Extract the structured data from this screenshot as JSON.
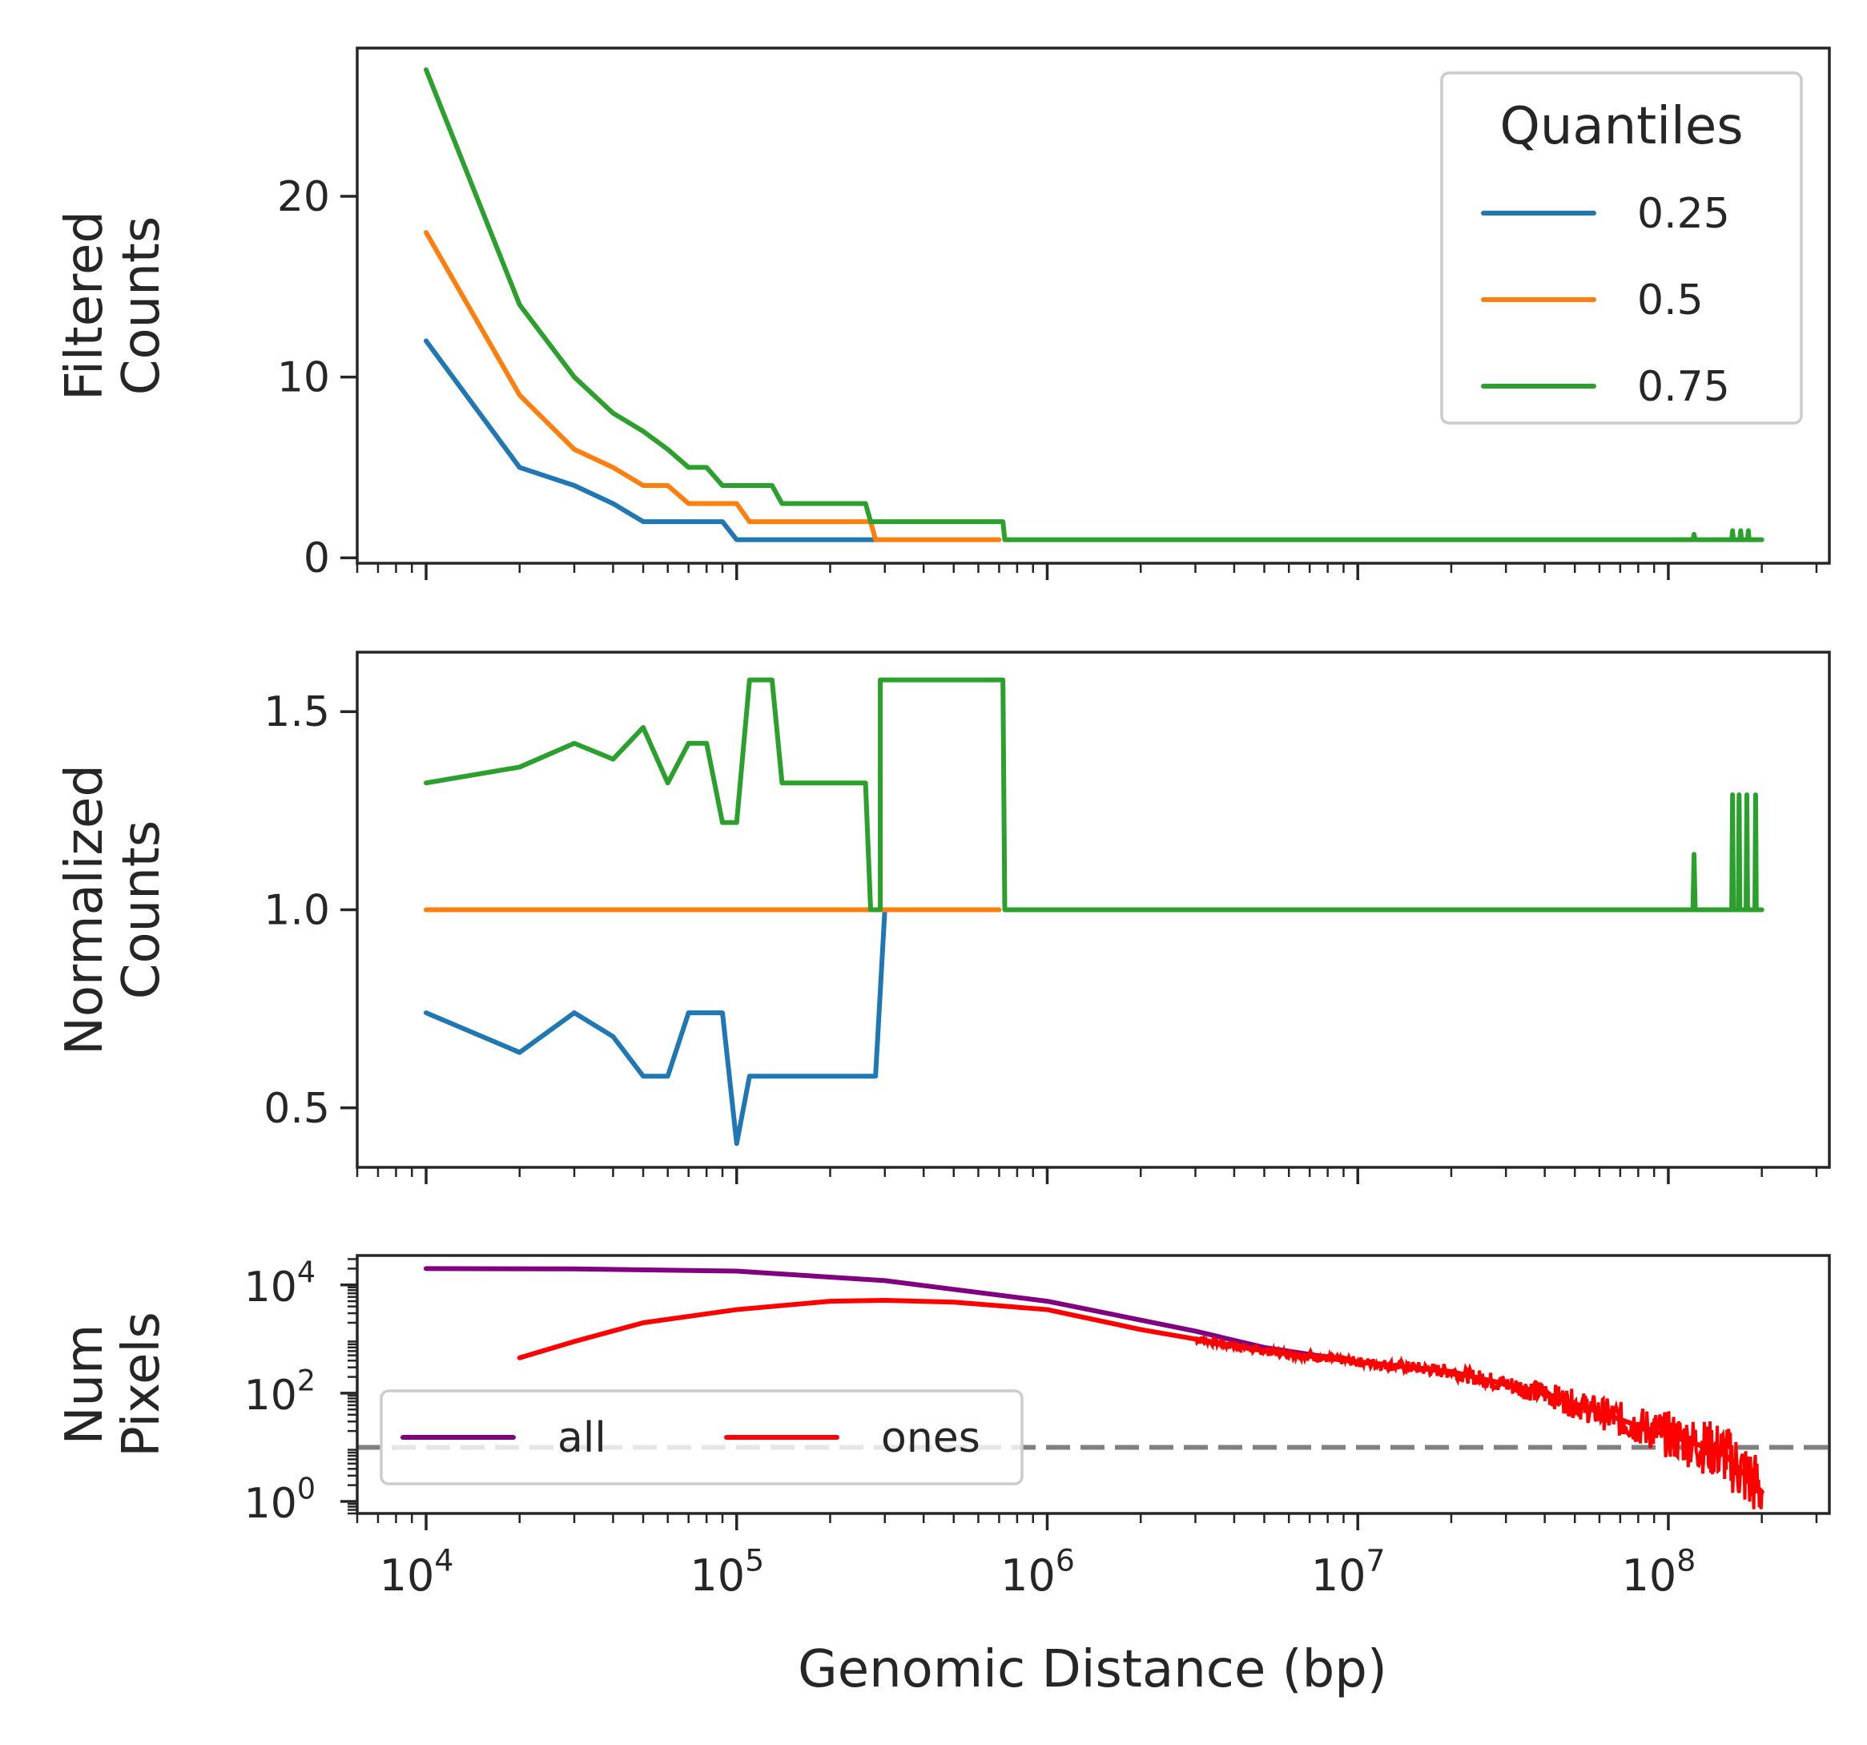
{
  "figure": {
    "xlabel": "Genomic Distance (bp)",
    "x_scale": "log",
    "xlim": [
      6000,
      330000000
    ],
    "x_ticks": [
      {
        "value": 10000,
        "base": "10",
        "exp": "4"
      },
      {
        "value": 100000,
        "base": "10",
        "exp": "5"
      },
      {
        "value": 1000000,
        "base": "10",
        "exp": "6"
      },
      {
        "value": 10000000,
        "base": "10",
        "exp": "7"
      },
      {
        "value": 100000000,
        "base": "10",
        "exp": "8"
      }
    ]
  },
  "chart_data": [
    {
      "type": "line",
      "ylabel_lines": [
        "Filtered",
        "Counts"
      ],
      "ylim": [
        -0.3,
        28.2
      ],
      "y_ticks": [
        {
          "value": 0,
          "label": "0"
        },
        {
          "value": 10,
          "label": "10"
        },
        {
          "value": 20,
          "label": "20"
        }
      ],
      "grid": false,
      "legend": {
        "title": "Quantiles",
        "placement": "upper-right"
      },
      "series": [
        {
          "name": "0.25",
          "color": "#1f77b4",
          "step": false,
          "points": [
            [
              10000,
              12
            ],
            [
              20000,
              5
            ],
            [
              30000,
              4
            ],
            [
              40000,
              3
            ],
            [
              50000,
              2
            ],
            [
              60000,
              2
            ],
            [
              70000,
              2
            ],
            [
              80000,
              2
            ],
            [
              90000,
              2
            ],
            [
              100000,
              1
            ],
            [
              200000,
              1
            ],
            [
              280000,
              1
            ]
          ]
        },
        {
          "name": "0.5",
          "color": "#ff7f0e",
          "step": false,
          "points": [
            [
              10000,
              18
            ],
            [
              20000,
              9
            ],
            [
              30000,
              6
            ],
            [
              40000,
              5
            ],
            [
              50000,
              4
            ],
            [
              60000,
              4
            ],
            [
              70000,
              3
            ],
            [
              80000,
              3
            ],
            [
              90000,
              3
            ],
            [
              100000,
              3
            ],
            [
              110000,
              2
            ],
            [
              200000,
              2
            ],
            [
              270000,
              2
            ],
            [
              280000,
              1
            ],
            [
              700000,
              1
            ]
          ]
        },
        {
          "name": "0.75",
          "color": "#2ca02c",
          "step": false,
          "points": [
            [
              10000,
              27
            ],
            [
              20000,
              14
            ],
            [
              30000,
              10
            ],
            [
              40000,
              8
            ],
            [
              50000,
              7
            ],
            [
              60000,
              6
            ],
            [
              70000,
              5
            ],
            [
              80000,
              5
            ],
            [
              90000,
              4
            ],
            [
              100000,
              4
            ],
            [
              130000,
              4
            ],
            [
              140000,
              3
            ],
            [
              260000,
              3
            ],
            [
              270000,
              2
            ],
            [
              720000,
              2
            ],
            [
              730000,
              1
            ],
            [
              120000000,
              1
            ],
            [
              121000000,
              1.3
            ],
            [
              122000000,
              1
            ],
            [
              160000000,
              1
            ],
            [
              161000000,
              1.5
            ],
            [
              162000000,
              1
            ],
            [
              170000000,
              1
            ],
            [
              171000000,
              1.5
            ],
            [
              172000000,
              1
            ],
            [
              180000000,
              1
            ],
            [
              181000000,
              1.5
            ],
            [
              182000000,
              1
            ],
            [
              200000000,
              1
            ]
          ]
        }
      ]
    },
    {
      "type": "line",
      "ylabel_lines": [
        "Normalized",
        "Counts"
      ],
      "ylim": [
        0.35,
        1.65
      ],
      "y_ticks": [
        {
          "value": 0.5,
          "label": "0.5"
        },
        {
          "value": 1.0,
          "label": "1.0"
        },
        {
          "value": 1.5,
          "label": "1.5"
        }
      ],
      "grid": false,
      "series": [
        {
          "name": "0.25",
          "color": "#1f77b4",
          "points": [
            [
              10000,
              0.74
            ],
            [
              20000,
              0.64
            ],
            [
              30000,
              0.74
            ],
            [
              40000,
              0.68
            ],
            [
              50000,
              0.58
            ],
            [
              60000,
              0.58
            ],
            [
              70000,
              0.74
            ],
            [
              80000,
              0.74
            ],
            [
              90000,
              0.74
            ],
            [
              100000,
              0.41
            ],
            [
              110000,
              0.58
            ],
            [
              280000,
              0.58
            ],
            [
              300000,
              1.0
            ]
          ]
        },
        {
          "name": "0.5",
          "color": "#ff7f0e",
          "points": [
            [
              10000,
              1.0
            ],
            [
              700000,
              1.0
            ]
          ]
        },
        {
          "name": "0.75",
          "color": "#2ca02c",
          "points": [
            [
              10000,
              1.32
            ],
            [
              20000,
              1.36
            ],
            [
              30000,
              1.42
            ],
            [
              40000,
              1.38
            ],
            [
              50000,
              1.46
            ],
            [
              60000,
              1.32
            ],
            [
              70000,
              1.42
            ],
            [
              80000,
              1.42
            ],
            [
              90000,
              1.22
            ],
            [
              100000,
              1.22
            ],
            [
              110000,
              1.58
            ],
            [
              130000,
              1.58
            ],
            [
              140000,
              1.32
            ],
            [
              260000,
              1.32
            ],
            [
              270000,
              1.0
            ],
            [
              290000,
              1.0
            ],
            [
              290000,
              1.58
            ],
            [
              720000,
              1.58
            ],
            [
              730000,
              1.0
            ],
            [
              120000000,
              1.0
            ],
            [
              121000000,
              1.14
            ],
            [
              122000000,
              1.0
            ],
            [
              160000000,
              1.0
            ],
            [
              161000000,
              1.29
            ],
            [
              162000000,
              1.0
            ],
            [
              168000000,
              1.0
            ],
            [
              169000000,
              1.29
            ],
            [
              170000000,
              1.0
            ],
            [
              178000000,
              1.0
            ],
            [
              179000000,
              1.29
            ],
            [
              180000000,
              1.0
            ],
            [
              190000000,
              1.0
            ],
            [
              191000000,
              1.29
            ],
            [
              192000000,
              1.0
            ],
            [
              200000000,
              1.0
            ]
          ]
        }
      ]
    },
    {
      "type": "line",
      "ylabel_lines": [
        "Num",
        "Pixels"
      ],
      "y_scale": "log",
      "ylim": [
        0.6,
        35000
      ],
      "y_ticks": [
        {
          "value": 1,
          "base": "10",
          "exp": "0"
        },
        {
          "value": 100,
          "base": "10",
          "exp": "2"
        },
        {
          "value": 10000,
          "base": "10",
          "exp": "4"
        }
      ],
      "grid": false,
      "hline": {
        "value": 10,
        "color": "#808080",
        "style": "dashed"
      },
      "legend": {
        "placement": "lower-left",
        "columns": 2
      },
      "series": [
        {
          "name": "all",
          "color": "#800080",
          "points": [
            [
              10000,
              20000
            ],
            [
              30000,
              19800
            ],
            [
              100000,
              18000
            ],
            [
              300000,
              12000
            ],
            [
              1000000,
              5000
            ],
            [
              3000000,
              1400
            ],
            [
              5000000,
              700
            ],
            [
              10000000,
              380
            ],
            [
              20000000,
              250
            ],
            [
              40000000,
              100
            ],
            [
              80000000,
              25
            ],
            [
              150000000,
              8
            ],
            [
              200000000,
              1.5
            ]
          ]
        },
        {
          "name": "ones",
          "color": "#ff0000",
          "noisy_tail": true,
          "points": [
            [
              20000,
              450
            ],
            [
              30000,
              900
            ],
            [
              50000,
              2000
            ],
            [
              100000,
              3500
            ],
            [
              200000,
              5000
            ],
            [
              300000,
              5200
            ],
            [
              500000,
              4800
            ],
            [
              1000000,
              3500
            ],
            [
              2000000,
              1500
            ],
            [
              3000000,
              1000
            ],
            [
              5000000,
              600
            ],
            [
              10000000,
              380
            ],
            [
              20000000,
              250
            ],
            [
              40000000,
              100
            ],
            [
              80000000,
              25
            ],
            [
              150000000,
              8
            ],
            [
              200000000,
              1.5
            ]
          ]
        }
      ]
    }
  ]
}
